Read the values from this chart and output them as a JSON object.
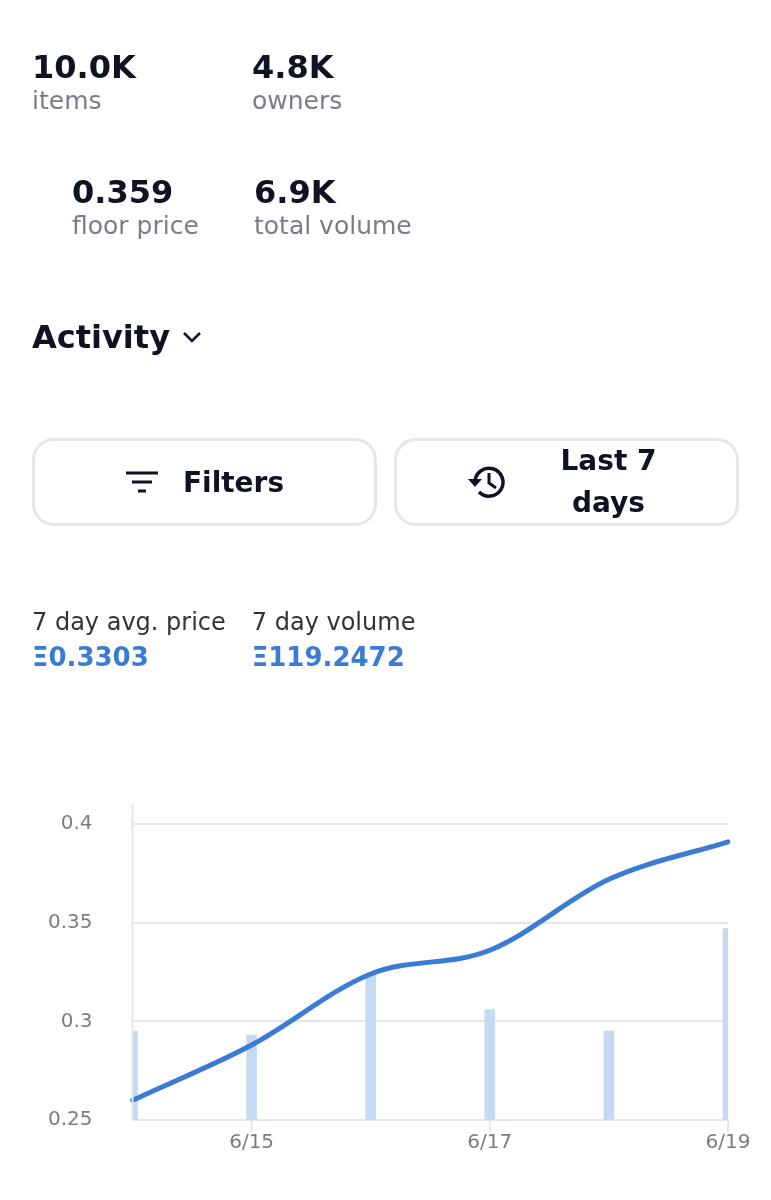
{
  "chart_data": [
    {
      "type": "other",
      "annotations": [
        "10.0K",
        "items",
        "4.8K",
        "owners",
        "0.359",
        "floor price",
        "6.9K",
        "total volume",
        "Activity",
        "Filters",
        "Last 7 days"
      ]
    },
    {
      "type": "line",
      "annotations": [
        "7 day avg. price",
        "Ξ0.3303",
        "7 day volume",
        "Ξ119.2472"
      ],
      "categories": [
        null,
        "6/15",
        null,
        "6/17",
        null,
        "6/19"
      ],
      "series": [
        {
          "type": "bar",
          "color": "#c5dbf3",
          "values": [
            0.295,
            0.293,
            0.324,
            0.306,
            0.295,
            0.347
          ]
        },
        {
          "type": "line",
          "color": "#3a7bd5",
          "values": [
            0.26,
            0.288,
            0.324,
            0.336,
            0.372,
            0.391
          ]
        }
      ],
      "ylim": [
        0.25,
        0.4
      ],
      "yticks": [
        0.25,
        0.3,
        0.35,
        0.4
      ],
      "grid": "y",
      "legend": false,
      "marker": "none",
      "line_style": "solid"
    }
  ]
}
